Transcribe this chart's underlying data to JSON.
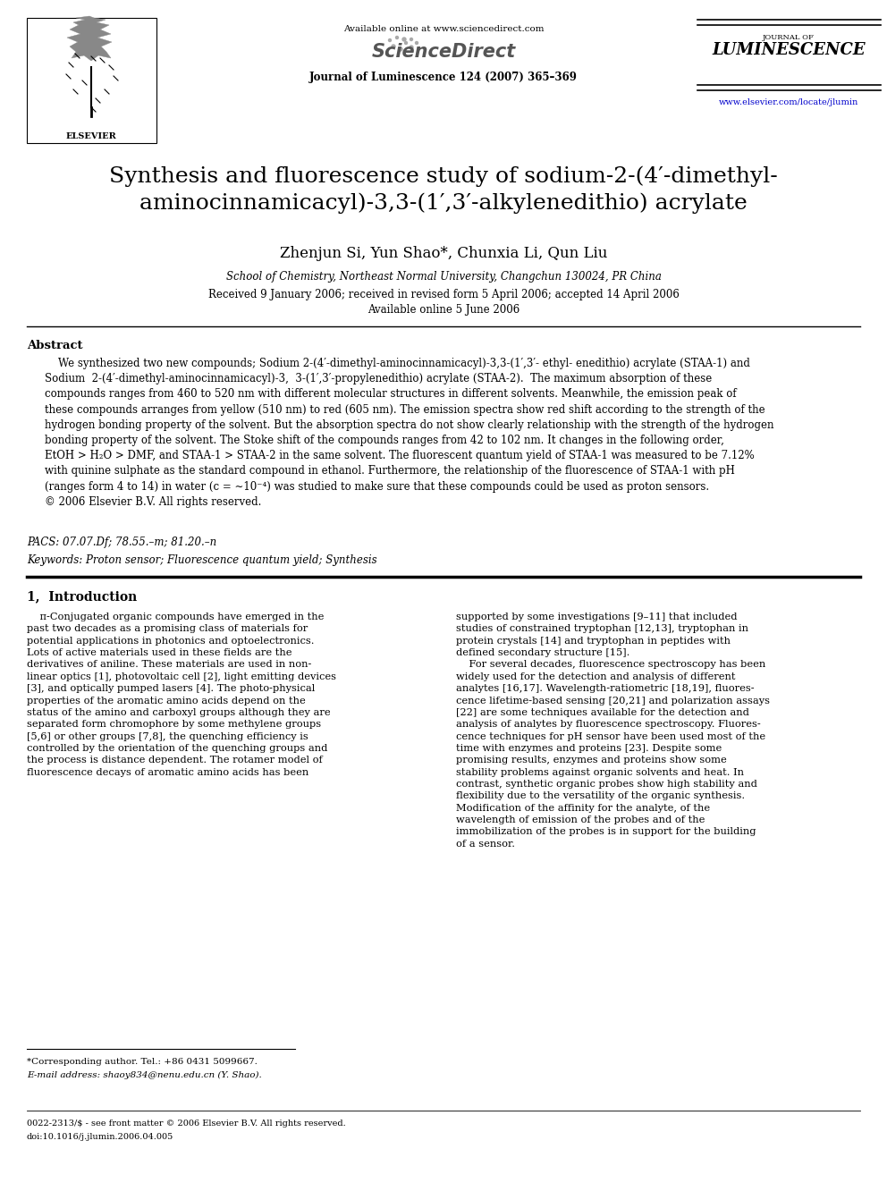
{
  "bg_color": "#ffffff",
  "page_width": 9.92,
  "page_height": 13.23,
  "header": {
    "available_online": "Available online at www.sciencedirect.com",
    "sciencedirect": "ScienceDirect",
    "journal_name": "Journal of Luminescence 124 (2007) 365–369",
    "luminescence_label": "JOURNAL OF\nLUMINESCENCE",
    "url": "www.elsevier.com/locate/jlumin"
  },
  "title_line1": "Synthesis and fluorescence study of sodium-2-(4′-dimethyl-",
  "title_line2": "aminocinnamicacyl)-3,3-(1′,3′-alkylenedithio) acrylate",
  "authors": "Zhenjun Si, Yun Shao*, Chunxia Li, Qun Liu",
  "affiliation": "School of Chemistry, Northeast Normal University, Changchun 130024, PR China",
  "received": "Received 9 January 2006; received in revised form 5 April 2006; accepted 14 April 2006",
  "available": "Available online 5 June 2006",
  "abstract_label": "Abstract",
  "abstract_text": "    We synthesized two new compounds; Sodium 2-(4′-dimethyl-aminocinnamicacyl)-3,3-(1′,3′- ethyl- enedithio) acrylate (STAA-1) and\nSodium  2-(4′-dimethyl-aminocinnamicacyl)-3,  3-(1′,3′-propylenedithio) acrylate (STAA-2).  The maximum absorption of these\ncompounds ranges from 460 to 520 nm with different molecular structures in different solvents. Meanwhile, the emission peak of\nthese compounds arranges from yellow (510 nm) to red (605 nm). The emission spectra show red shift according to the strength of the\nhydrogen bonding property of the solvent. But the absorption spectra do not show clearly relationship with the strength of the hydrogen\nbonding property of the solvent. The Stoke shift of the compounds ranges from 42 to 102 nm. It changes in the following order,\nEtOH > H₂O > DMF, and STAA-1 > STAA-2 in the same solvent. The fluorescent quantum yield of STAA-1 was measured to be 7.12%\nwith quinine sulphate as the standard compound in ethanol. Furthermore, the relationship of the fluorescence of STAA-1 with pH\n(ranges form 4 to 14) in water (c = ∼10⁻⁴) was studied to make sure that these compounds could be used as proton sensors.\n© 2006 Elsevier B.V. All rights reserved.",
  "pacs": "PACS: 07.07.Df; 78.55.–m; 81.20.–n",
  "keywords": "Keywords: Proton sensor; Fluorescence quantum yield; Synthesis",
  "section1_title": "1,  Introduction",
  "section1_left": "    π-Conjugated organic compounds have emerged in the\npast two decades as a promising class of materials for\npotential applications in photonics and optoelectronics.\nLots of active materials used in these fields are the\nderivatives of aniline. These materials are used in non-\nlinear optics [1], photovoltaic cell [2], light emitting devices\n[3], and optically pumped lasers [4]. The photo-physical\nproperties of the aromatic amino acids depend on the\nstatus of the amino and carboxyl groups although they are\nseparated form chromophore by some methylene groups\n[5,6] or other groups [7,8], the quenching efficiency is\ncontrolled by the orientation of the quenching groups and\nthe process is distance dependent. The rotamer model of\nfluorescence decays of aromatic amino acids has been",
  "section1_right": "supported by some investigations [9–11] that included\nstudies of constrained tryptophan [12,13], tryptophan in\nprotein crystals [14] and tryptophan in peptides with\ndefined secondary structure [15].\n    For several decades, fluorescence spectroscopy has been\nwidely used for the detection and analysis of different\nanalytes [16,17]. Wavelength-ratiometric [18,19], fluores-\ncence lifetime-based sensing [20,21] and polarization assays\n[22] are some techniques available for the detection and\nanalysis of analytes by fluorescence spectroscopy. Fluores-\ncence techniques for pH sensor have been used most of the\ntime with enzymes and proteins [23]. Despite some\npromising results, enzymes and proteins show some\nstability problems against organic solvents and heat. In\ncontrast, synthetic organic probes show high stability and\nflexibility due to the versatility of the organic synthesis.\nModification of the affinity for the analyte, of the\nwavelength of emission of the probes and of the\nimmobilization of the probes is in support for the building\nof a sensor.",
  "footnote_corresponding": "*Corresponding author. Tel.: +86 0431 5099667.",
  "footnote_email": "E-mail address: shaoy834@nenu.edu.cn (Y. Shao).",
  "footnote_bottom_1": "0022-2313/$ - see front matter © 2006 Elsevier B.V. All rights reserved.",
  "footnote_bottom_2": "doi:10.1016/j.jlumin.2006.04.005"
}
